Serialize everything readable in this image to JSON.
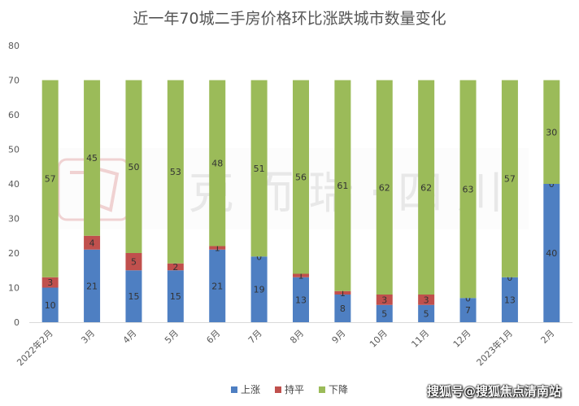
{
  "chart_data": {
    "type": "bar",
    "stacked": true,
    "title": "近一年70城二手房价格环比涨跌城市数量变化",
    "categories": [
      "2022年2月",
      "3月",
      "4月",
      "5月",
      "6月",
      "7月",
      "8月",
      "9月",
      "10月",
      "11月",
      "12月",
      "2023年1月",
      "2月"
    ],
    "series": [
      {
        "name": "上涨",
        "color": "#4e7fc2",
        "values": [
          10,
          21,
          15,
          15,
          21,
          19,
          13,
          8,
          5,
          5,
          7,
          13,
          40
        ]
      },
      {
        "name": "持平",
        "color": "#c0504d",
        "values": [
          3,
          4,
          5,
          2,
          1,
          0,
          1,
          1,
          3,
          3,
          0,
          0,
          0
        ]
      },
      {
        "name": "下降",
        "color": "#9bbb59",
        "values": [
          57,
          45,
          50,
          53,
          48,
          51,
          56,
          61,
          62,
          62,
          63,
          57,
          30
        ]
      }
    ],
    "ylim": [
      0,
      80
    ],
    "yticks": [
      0,
      10,
      20,
      30,
      40,
      50,
      60,
      70,
      80
    ],
    "grid": false,
    "legend": "bottom"
  },
  "watermark": {
    "center_text": "克 而 瑞 · 四 川",
    "corner_text": "搜狐号@搜狐焦点清南站"
  }
}
